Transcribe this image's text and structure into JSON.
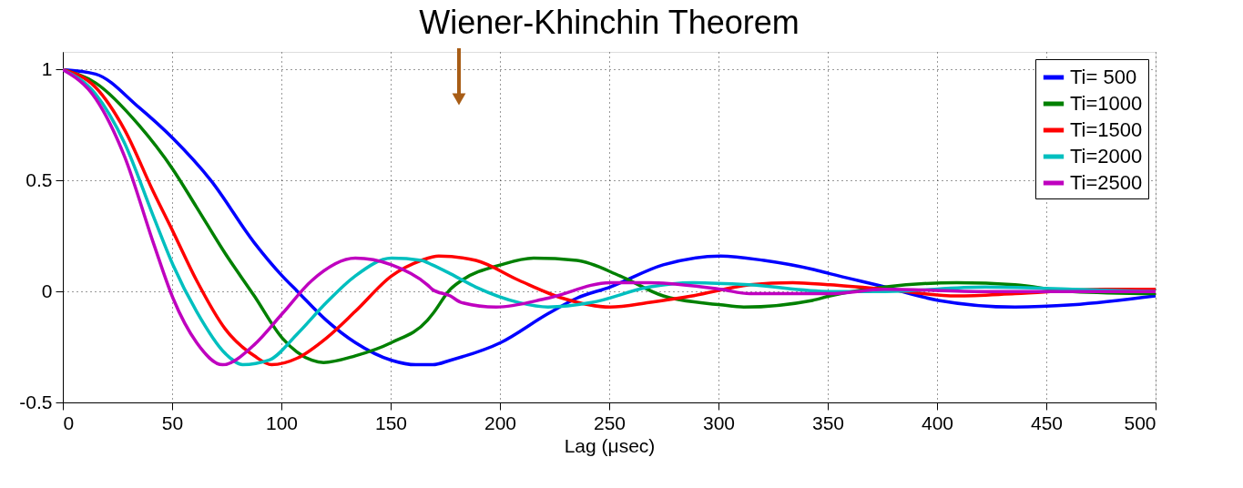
{
  "chart_data": {
    "type": "line",
    "title": "Wiener-Khinchin Theorem",
    "xlabel": "Lag (μsec)",
    "xlim": [
      0,
      500
    ],
    "xticks": [
      0,
      50,
      100,
      150,
      200,
      250,
      300,
      350,
      400,
      450,
      500
    ],
    "ylim": [
      -0.5,
      1.08
    ],
    "yticks": [
      -0.5,
      0,
      0.5,
      1
    ],
    "grid": true,
    "legend": "top right",
    "line_style": "solid",
    "series": [
      {
        "name": "Ti= 500",
        "color": "#0000ff",
        "x": [
          0,
          15,
          34.8,
          50.4,
          67.8,
          87.6,
          100.4,
          107.4,
          120.6,
          133.8,
          150.4,
          161.5,
          169.3,
          177.3,
          200.4,
          222,
          235.2,
          250.4,
          274.7,
          301,
          320.8,
          343,
          351,
          376.3,
          400.6,
          435.7,
          462,
          500
        ],
        "values": [
          1,
          0.98,
          0.83,
          0.69,
          0.5,
          0.22,
          0.07,
          0,
          -0.13,
          -0.23,
          -0.31,
          -0.33,
          -0.33,
          -0.31,
          -0.23,
          -0.1,
          -0.03,
          0.02,
          0.12,
          0.16,
          0.14,
          0.1,
          0.08,
          0.02,
          -0.04,
          -0.07,
          -0.06,
          -0.02
        ]
      },
      {
        "name": "Ti=1000",
        "color": "#008000",
        "x": [
          0,
          15,
          34.8,
          50.4,
          61.2,
          74.4,
          87.6,
          100.4,
          114,
          119.3,
          133.8,
          150.4,
          166.8,
          169.3,
          177.3,
          182.5,
          200.4,
          215.4,
          235.2,
          255,
          274.7,
          301,
          311.6,
          343,
          351,
          376,
          409,
          435.7,
          462,
          500
        ],
        "values": [
          1,
          0.94,
          0.75,
          0.55,
          0.38,
          0.17,
          -0.02,
          -0.21,
          -0.31,
          -0.32,
          -0.29,
          -0.23,
          -0.13,
          -0.1,
          0.01,
          0.05,
          0.12,
          0.15,
          0.14,
          0.07,
          -0.02,
          -0.06,
          -0.07,
          -0.04,
          -0.02,
          0.02,
          0.04,
          0.03,
          0,
          -0.01
        ]
      },
      {
        "name": "Ti=1500",
        "color": "#ff0000",
        "x": [
          0,
          15,
          28.2,
          41.4,
          50.4,
          61.2,
          74.4,
          87.6,
          95.5,
          107.4,
          120.6,
          133.8,
          150.4,
          164,
          172,
          189,
          208.8,
          228.6,
          250.4,
          268.2,
          288,
          314.4,
          334,
          351,
          376,
          409,
          435.7,
          475,
          500
        ],
        "values": [
          1,
          0.92,
          0.73,
          0.45,
          0.27,
          0.05,
          -0.17,
          -0.29,
          -0.33,
          -0.3,
          -0.21,
          -0.09,
          0.07,
          0.14,
          0.16,
          0.14,
          0.05,
          -0.03,
          -0.07,
          -0.05,
          -0.02,
          0.03,
          0.04,
          0.03,
          0.01,
          -0.02,
          -0.01,
          0.01,
          0.01
        ]
      },
      {
        "name": "Ti=2000",
        "color": "#00bfbf",
        "x": [
          0,
          15,
          28.2,
          41.4,
          50.4,
          61.2,
          74.4,
          82.3,
          94.2,
          107.4,
          120.6,
          133.8,
          150.4,
          164,
          169,
          177.3,
          189,
          208.8,
          222,
          241.8,
          268.2,
          288,
          314.4,
          351,
          376,
          422,
          462,
          500
        ],
        "values": [
          1,
          0.89,
          0.67,
          0.34,
          0.12,
          -0.09,
          -0.28,
          -0.33,
          -0.31,
          -0.19,
          -0.05,
          0.07,
          0.15,
          0.14,
          0.12,
          0.08,
          0.02,
          -0.05,
          -0.07,
          -0.05,
          0.02,
          0.04,
          0.03,
          0,
          0,
          0.02,
          0.01,
          0
        ]
      },
      {
        "name": "Ti=2500",
        "color": "#bf00bf",
        "x": [
          0,
          15,
          28.2,
          41.4,
          50.4,
          61.2,
          73.1,
          87.6,
          100.4,
          114,
          133.8,
          150.4,
          166.8,
          169,
          177.3,
          182.5,
          198.3,
          222,
          250.4,
          268.2,
          301,
          314.4,
          351,
          376,
          422,
          500
        ],
        "values": [
          1,
          0.87,
          0.61,
          0.22,
          -0.03,
          -0.23,
          -0.33,
          -0.24,
          -0.1,
          0.05,
          0.15,
          0.12,
          0.03,
          0.01,
          -0.02,
          -0.05,
          -0.07,
          -0.03,
          0.04,
          0.04,
          0.01,
          -0.01,
          -0.01,
          0.01,
          0,
          0
        ]
      }
    ]
  }
}
